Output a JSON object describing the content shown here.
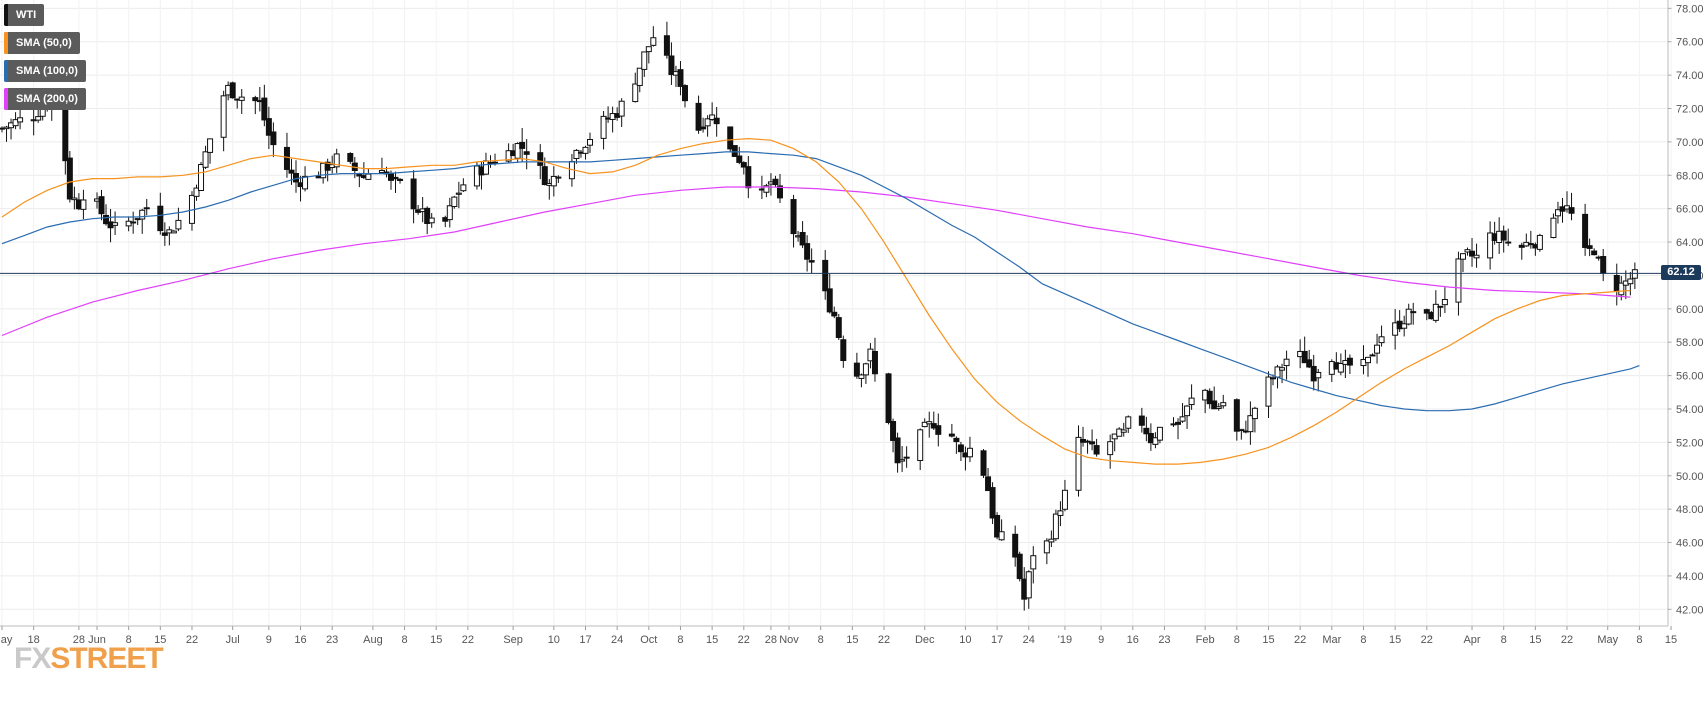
{
  "legend": [
    {
      "label": "WTI",
      "color": "#111111"
    },
    {
      "label": "SMA (50,0)",
      "color": "#f7931e"
    },
    {
      "label": "SMA (100,0)",
      "color": "#2b6cb0"
    },
    {
      "label": "SMA (200,0)",
      "color": "#e040fb"
    }
  ],
  "last_price_label": "62.12",
  "watermark": {
    "fx": "FX",
    "street": "STREET"
  },
  "chart_data": {
    "type": "candlestick",
    "instrument": "WTI",
    "y_axis": {
      "ylim": [
        41.0,
        78.5
      ],
      "ticks": [
        "42.00",
        "44.00",
        "46.00",
        "48.00",
        "50.00",
        "52.00",
        "54.00",
        "56.00",
        "58.00",
        "60.00",
        "62.00",
        "64.00",
        "66.00",
        "68.00",
        "70.00",
        "72.00",
        "74.00",
        "76.00",
        "78.00"
      ],
      "position": "right",
      "grid": true
    },
    "x_axis": {
      "range_days": [
        0,
        367
      ],
      "ticks": [
        {
          "day": 0,
          "label": "May"
        },
        {
          "day": 7,
          "label": "18"
        },
        {
          "day": 17,
          "label": "28"
        },
        {
          "day": 21,
          "label": "Jun"
        },
        {
          "day": 28,
          "label": "8"
        },
        {
          "day": 35,
          "label": "15"
        },
        {
          "day": 42,
          "label": "22"
        },
        {
          "day": 51,
          "label": "Jul"
        },
        {
          "day": 59,
          "label": "9"
        },
        {
          "day": 66,
          "label": "16"
        },
        {
          "day": 73,
          "label": "23"
        },
        {
          "day": 82,
          "label": "Aug"
        },
        {
          "day": 89,
          "label": "8"
        },
        {
          "day": 96,
          "label": "15"
        },
        {
          "day": 103,
          "label": "22"
        },
        {
          "day": 113,
          "label": "Sep"
        },
        {
          "day": 122,
          "label": "10"
        },
        {
          "day": 129,
          "label": "17"
        },
        {
          "day": 136,
          "label": "24"
        },
        {
          "day": 143,
          "label": "Oct"
        },
        {
          "day": 150,
          "label": "8"
        },
        {
          "day": 157,
          "label": "15"
        },
        {
          "day": 164,
          "label": "22"
        },
        {
          "day": 170,
          "label": "28"
        },
        {
          "day": 174,
          "label": "Nov"
        },
        {
          "day": 181,
          "label": "8"
        },
        {
          "day": 188,
          "label": "15"
        },
        {
          "day": 195,
          "label": "22"
        },
        {
          "day": 204,
          "label": "Dec"
        },
        {
          "day": 213,
          "label": "10"
        },
        {
          "day": 220,
          "label": "17"
        },
        {
          "day": 227,
          "label": "24"
        },
        {
          "day": 235,
          "label": "'19"
        },
        {
          "day": 243,
          "label": "9"
        },
        {
          "day": 250,
          "label": "16"
        },
        {
          "day": 257,
          "label": "23"
        },
        {
          "day": 266,
          "label": "Feb"
        },
        {
          "day": 273,
          "label": "8"
        },
        {
          "day": 280,
          "label": "15"
        },
        {
          "day": 287,
          "label": "22"
        },
        {
          "day": 294,
          "label": "Mar"
        },
        {
          "day": 301,
          "label": "8"
        },
        {
          "day": 308,
          "label": "15"
        },
        {
          "day": 315,
          "label": "22"
        },
        {
          "day": 325,
          "label": "Apr"
        },
        {
          "day": 332,
          "label": "8"
        },
        {
          "day": 339,
          "label": "15"
        },
        {
          "day": 346,
          "label": "22"
        },
        {
          "day": 355,
          "label": "May"
        },
        {
          "day": 362,
          "label": "8"
        },
        {
          "day": 369,
          "label": "15"
        }
      ]
    },
    "price_line": 62.12,
    "close_path": [
      [
        0,
        70.8
      ],
      [
        3,
        71.2
      ],
      [
        7,
        71.6
      ],
      [
        10,
        72.3
      ],
      [
        12,
        71.8
      ],
      [
        14,
        69.0
      ],
      [
        15,
        66.8
      ],
      [
        17,
        66.3
      ],
      [
        19,
        67.5
      ],
      [
        21,
        66.2
      ],
      [
        23,
        65.3
      ],
      [
        25,
        64.8
      ],
      [
        28,
        65.2
      ],
      [
        30,
        65.6
      ],
      [
        33,
        66.3
      ],
      [
        35,
        65.0
      ],
      [
        37,
        64.6
      ],
      [
        40,
        65.6
      ],
      [
        42,
        66.8
      ],
      [
        44,
        68.4
      ],
      [
        46,
        70.2
      ],
      [
        48,
        72.4
      ],
      [
        50,
        73.2
      ],
      [
        52,
        72.8
      ],
      [
        55,
        72.6
      ],
      [
        57,
        72.3
      ],
      [
        59,
        70.4
      ],
      [
        61,
        69.2
      ],
      [
        63,
        68.4
      ],
      [
        65,
        67.6
      ],
      [
        67,
        67.8
      ],
      [
        70,
        68.1
      ],
      [
        73,
        68.8
      ],
      [
        75,
        69.2
      ],
      [
        77,
        68.5
      ],
      [
        80,
        67.9
      ],
      [
        82,
        68.4
      ],
      [
        84,
        68.6
      ],
      [
        86,
        67.5
      ],
      [
        89,
        67.4
      ],
      [
        91,
        66.3
      ],
      [
        94,
        65.3
      ],
      [
        96,
        64.8
      ],
      [
        98,
        65.2
      ],
      [
        100,
        66.6
      ],
      [
        103,
        67.9
      ],
      [
        106,
        68.4
      ],
      [
        109,
        69.0
      ],
      [
        112,
        69.4
      ],
      [
        114,
        69.8
      ],
      [
        117,
        69.4
      ],
      [
        119,
        68.3
      ],
      [
        121,
        67.4
      ],
      [
        123,
        68.3
      ],
      [
        126,
        69.2
      ],
      [
        129,
        70.0
      ],
      [
        131,
        70.6
      ],
      [
        133,
        71.2
      ],
      [
        136,
        71.8
      ],
      [
        138,
        72.6
      ],
      [
        140,
        73.8
      ],
      [
        142,
        75.2
      ],
      [
        144,
        76.3
      ],
      [
        146,
        75.4
      ],
      [
        148,
        74.2
      ],
      [
        150,
        73.6
      ],
      [
        152,
        71.6
      ],
      [
        154,
        70.8
      ],
      [
        156,
        71.6
      ],
      [
        158,
        71.4
      ],
      [
        160,
        69.6
      ],
      [
        162,
        69.3
      ],
      [
        164,
        68.7
      ],
      [
        166,
        66.6
      ],
      [
        168,
        66.8
      ],
      [
        170,
        67.6
      ],
      [
        172,
        66.5
      ],
      [
        174,
        65.2
      ],
      [
        176,
        64.0
      ],
      [
        178,
        63.1
      ],
      [
        180,
        62.4
      ],
      [
        182,
        60.8
      ],
      [
        184,
        59.6
      ],
      [
        186,
        57.2
      ],
      [
        188,
        55.8
      ],
      [
        190,
        56.4
      ],
      [
        192,
        57.3
      ],
      [
        194,
        54.7
      ],
      [
        196,
        53.4
      ],
      [
        198,
        50.6
      ],
      [
        200,
        51.2
      ],
      [
        202,
        51.9
      ],
      [
        204,
        52.8
      ],
      [
        206,
        53.2
      ],
      [
        208,
        52.4
      ],
      [
        210,
        52.4
      ],
      [
        212,
        51.3
      ],
      [
        214,
        51.6
      ],
      [
        216,
        51.2
      ],
      [
        218,
        49.2
      ],
      [
        220,
        46.2
      ],
      [
        222,
        46.3
      ],
      [
        224,
        45.2
      ],
      [
        226,
        42.6
      ],
      [
        228,
        45.4
      ],
      [
        230,
        45.3
      ],
      [
        232,
        46.6
      ],
      [
        234,
        48.2
      ],
      [
        236,
        49.6
      ],
      [
        238,
        52.0
      ],
      [
        240,
        51.9
      ],
      [
        242,
        51.2
      ],
      [
        244,
        51.8
      ],
      [
        246,
        52.3
      ],
      [
        248,
        52.5
      ],
      [
        250,
        53.8
      ],
      [
        252,
        53.2
      ],
      [
        254,
        52.2
      ],
      [
        256,
        52.8
      ],
      [
        258,
        53.5
      ],
      [
        260,
        53.1
      ],
      [
        262,
        54.0
      ],
      [
        264,
        55.0
      ],
      [
        266,
        55.1
      ],
      [
        268,
        54.0
      ],
      [
        270,
        54.4
      ],
      [
        272,
        52.6
      ],
      [
        274,
        52.5
      ],
      [
        276,
        53.4
      ],
      [
        278,
        54.8
      ],
      [
        280,
        55.6
      ],
      [
        282,
        56.2
      ],
      [
        284,
        57.0
      ],
      [
        286,
        57.3
      ],
      [
        288,
        57.0
      ],
      [
        290,
        56.1
      ],
      [
        292,
        56.8
      ],
      [
        294,
        57.2
      ],
      [
        296,
        56.4
      ],
      [
        298,
        56.6
      ],
      [
        300,
        56.3
      ],
      [
        302,
        56.8
      ],
      [
        304,
        58.1
      ],
      [
        306,
        58.8
      ],
      [
        308,
        58.9
      ],
      [
        310,
        59.4
      ],
      [
        312,
        59.9
      ],
      [
        314,
        59.1
      ],
      [
        316,
        59.7
      ],
      [
        318,
        60.3
      ],
      [
        320,
        61.2
      ],
      [
        322,
        62.6
      ],
      [
        324,
        63.2
      ],
      [
        326,
        63.1
      ],
      [
        328,
        64.3
      ],
      [
        330,
        64.4
      ],
      [
        332,
        64.2
      ],
      [
        334,
        63.8
      ],
      [
        336,
        63.7
      ],
      [
        338,
        64.1
      ],
      [
        340,
        64.0
      ],
      [
        342,
        65.3
      ],
      [
        344,
        66.2
      ],
      [
        346,
        66.0
      ],
      [
        348,
        65.2
      ],
      [
        350,
        63.3
      ],
      [
        352,
        63.6
      ],
      [
        354,
        61.9
      ],
      [
        356,
        61.3
      ],
      [
        358,
        61.4
      ],
      [
        360,
        61.8
      ],
      [
        362,
        62.1
      ]
    ],
    "sma50": [
      [
        0,
        65.5
      ],
      [
        5,
        66.4
      ],
      [
        10,
        67.1
      ],
      [
        15,
        67.6
      ],
      [
        20,
        67.8
      ],
      [
        25,
        67.8
      ],
      [
        30,
        67.9
      ],
      [
        35,
        67.9
      ],
      [
        40,
        68.0
      ],
      [
        45,
        68.2
      ],
      [
        50,
        68.6
      ],
      [
        55,
        69.0
      ],
      [
        60,
        69.2
      ],
      [
        65,
        69.0
      ],
      [
        70,
        68.8
      ],
      [
        75,
        68.6
      ],
      [
        80,
        68.4
      ],
      [
        85,
        68.4
      ],
      [
        90,
        68.5
      ],
      [
        95,
        68.6
      ],
      [
        100,
        68.6
      ],
      [
        105,
        68.8
      ],
      [
        110,
        68.9
      ],
      [
        115,
        69.0
      ],
      [
        120,
        68.8
      ],
      [
        125,
        68.4
      ],
      [
        130,
        68.1
      ],
      [
        135,
        68.2
      ],
      [
        140,
        68.6
      ],
      [
        145,
        69.2
      ],
      [
        150,
        69.6
      ],
      [
        155,
        69.9
      ],
      [
        160,
        70.1
      ],
      [
        165,
        70.2
      ],
      [
        170,
        70.1
      ],
      [
        175,
        69.6
      ],
      [
        180,
        68.8
      ],
      [
        185,
        67.6
      ],
      [
        190,
        66.0
      ],
      [
        195,
        64.0
      ],
      [
        200,
        61.8
      ],
      [
        205,
        59.6
      ],
      [
        210,
        57.6
      ],
      [
        215,
        55.8
      ],
      [
        220,
        54.4
      ],
      [
        225,
        53.3
      ],
      [
        230,
        52.4
      ],
      [
        235,
        51.6
      ],
      [
        240,
        51.1
      ],
      [
        245,
        50.9
      ],
      [
        250,
        50.8
      ],
      [
        255,
        50.7
      ],
      [
        260,
        50.7
      ],
      [
        265,
        50.8
      ],
      [
        270,
        51.0
      ],
      [
        275,
        51.3
      ],
      [
        280,
        51.7
      ],
      [
        285,
        52.3
      ],
      [
        290,
        53.0
      ],
      [
        295,
        53.8
      ],
      [
        300,
        54.7
      ],
      [
        305,
        55.6
      ],
      [
        310,
        56.4
      ],
      [
        315,
        57.1
      ],
      [
        320,
        57.8
      ],
      [
        325,
        58.6
      ],
      [
        330,
        59.4
      ],
      [
        335,
        60.0
      ],
      [
        340,
        60.5
      ],
      [
        345,
        60.8
      ],
      [
        350,
        60.9
      ],
      [
        355,
        61.0
      ],
      [
        360,
        61.1
      ]
    ],
    "sma100": [
      [
        0,
        63.9
      ],
      [
        5,
        64.4
      ],
      [
        10,
        64.9
      ],
      [
        15,
        65.2
      ],
      [
        20,
        65.4
      ],
      [
        25,
        65.5
      ],
      [
        30,
        65.5
      ],
      [
        35,
        65.6
      ],
      [
        40,
        65.8
      ],
      [
        45,
        66.1
      ],
      [
        50,
        66.5
      ],
      [
        55,
        67.0
      ],
      [
        60,
        67.4
      ],
      [
        65,
        67.8
      ],
      [
        70,
        68.0
      ],
      [
        75,
        68.1
      ],
      [
        80,
        68.1
      ],
      [
        85,
        68.1
      ],
      [
        90,
        68.2
      ],
      [
        95,
        68.3
      ],
      [
        100,
        68.4
      ],
      [
        105,
        68.6
      ],
      [
        110,
        68.7
      ],
      [
        115,
        68.8
      ],
      [
        120,
        68.8
      ],
      [
        125,
        68.8
      ],
      [
        130,
        68.8
      ],
      [
        135,
        68.9
      ],
      [
        140,
        69.0
      ],
      [
        145,
        69.1
      ],
      [
        150,
        69.2
      ],
      [
        155,
        69.3
      ],
      [
        160,
        69.4
      ],
      [
        165,
        69.4
      ],
      [
        170,
        69.3
      ],
      [
        175,
        69.2
      ],
      [
        180,
        69.0
      ],
      [
        185,
        68.5
      ],
      [
        190,
        68.0
      ],
      [
        195,
        67.3
      ],
      [
        200,
        66.6
      ],
      [
        205,
        65.8
      ],
      [
        210,
        65.0
      ],
      [
        215,
        64.3
      ],
      [
        220,
        63.4
      ],
      [
        225,
        62.5
      ],
      [
        230,
        61.5
      ],
      [
        235,
        60.9
      ],
      [
        240,
        60.3
      ],
      [
        245,
        59.7
      ],
      [
        250,
        59.1
      ],
      [
        255,
        58.6
      ],
      [
        260,
        58.1
      ],
      [
        265,
        57.6
      ],
      [
        270,
        57.1
      ],
      [
        275,
        56.6
      ],
      [
        280,
        56.1
      ],
      [
        285,
        55.6
      ],
      [
        290,
        55.2
      ],
      [
        295,
        54.8
      ],
      [
        300,
        54.5
      ],
      [
        305,
        54.2
      ],
      [
        310,
        54.0
      ],
      [
        315,
        53.9
      ],
      [
        320,
        53.9
      ],
      [
        325,
        54.0
      ],
      [
        330,
        54.3
      ],
      [
        335,
        54.7
      ],
      [
        340,
        55.1
      ],
      [
        345,
        55.5
      ],
      [
        350,
        55.8
      ],
      [
        355,
        56.1
      ],
      [
        360,
        56.4
      ],
      [
        362,
        56.6
      ]
    ],
    "sma200": [
      [
        0,
        58.4
      ],
      [
        10,
        59.5
      ],
      [
        20,
        60.4
      ],
      [
        30,
        61.1
      ],
      [
        40,
        61.7
      ],
      [
        50,
        62.4
      ],
      [
        60,
        63.0
      ],
      [
        70,
        63.5
      ],
      [
        80,
        63.9
      ],
      [
        90,
        64.2
      ],
      [
        100,
        64.6
      ],
      [
        110,
        65.2
      ],
      [
        120,
        65.8
      ],
      [
        130,
        66.3
      ],
      [
        140,
        66.8
      ],
      [
        150,
        67.1
      ],
      [
        160,
        67.3
      ],
      [
        165,
        67.3
      ],
      [
        170,
        67.3
      ],
      [
        180,
        67.2
      ],
      [
        190,
        67.0
      ],
      [
        200,
        66.7
      ],
      [
        210,
        66.3
      ],
      [
        220,
        65.9
      ],
      [
        230,
        65.4
      ],
      [
        240,
        64.9
      ],
      [
        250,
        64.5
      ],
      [
        260,
        64.0
      ],
      [
        270,
        63.5
      ],
      [
        280,
        63.0
      ],
      [
        290,
        62.5
      ],
      [
        300,
        62.0
      ],
      [
        310,
        61.6
      ],
      [
        320,
        61.3
      ],
      [
        330,
        61.1
      ],
      [
        340,
        61.0
      ],
      [
        350,
        60.9
      ],
      [
        355,
        60.8
      ],
      [
        360,
        60.7
      ]
    ]
  }
}
